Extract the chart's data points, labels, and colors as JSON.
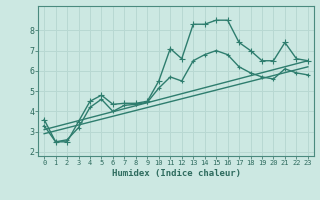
{
  "xlabel": "Humidex (Indice chaleur)",
  "line_color": "#2e7d6e",
  "background_color": "#cce8e2",
  "grid_color": "#b8d8d2",
  "spine_color": "#4a8a7e",
  "tick_color": "#2e6b5e",
  "xlim": [
    -0.5,
    23.5
  ],
  "ylim": [
    1.8,
    9.2
  ],
  "xticks": [
    0,
    1,
    2,
    3,
    4,
    5,
    6,
    7,
    8,
    9,
    10,
    11,
    12,
    13,
    14,
    15,
    16,
    17,
    18,
    19,
    20,
    21,
    22,
    23
  ],
  "yticks": [
    2,
    3,
    4,
    5,
    6,
    7,
    8
  ],
  "line1_x": [
    0,
    1,
    2,
    3,
    4,
    5,
    6,
    7,
    8,
    9,
    10,
    11,
    12,
    13,
    14,
    15,
    16,
    17,
    18,
    19,
    20,
    21,
    22,
    23
  ],
  "line1_y": [
    3.6,
    2.5,
    2.5,
    3.5,
    4.5,
    4.8,
    4.35,
    4.4,
    4.4,
    4.5,
    5.5,
    7.1,
    6.6,
    8.3,
    8.3,
    8.5,
    8.5,
    7.4,
    7.0,
    6.5,
    6.5,
    7.4,
    6.6,
    6.5
  ],
  "line2_x": [
    0,
    1,
    2,
    3,
    4,
    5,
    6,
    7,
    8,
    9,
    10,
    11,
    12,
    13,
    14,
    15,
    16,
    17,
    18,
    19,
    20,
    21,
    22,
    23
  ],
  "line2_y": [
    3.3,
    2.5,
    2.6,
    3.2,
    4.2,
    4.6,
    4.0,
    4.3,
    4.35,
    4.45,
    5.15,
    5.7,
    5.5,
    6.5,
    6.8,
    7.0,
    6.8,
    6.2,
    5.9,
    5.7,
    5.6,
    6.1,
    5.9,
    5.8
  ],
  "line3_x": [
    0,
    23
  ],
  "line3_y": [
    3.1,
    6.5
  ],
  "line4_x": [
    0,
    23
  ],
  "line4_y": [
    2.9,
    6.2
  ],
  "marker_size": 2.5,
  "line_width": 1.0
}
